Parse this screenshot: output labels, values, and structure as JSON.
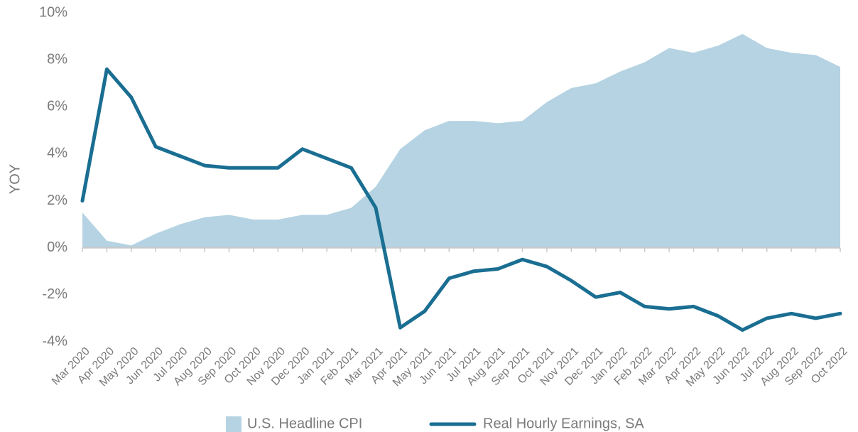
{
  "chart_data": {
    "type": "line",
    "y_label": "YOY",
    "categories": [
      "Mar 2020",
      "Apr 2020",
      "May 2020",
      "Jun 2020",
      "Jul 2020",
      "Aug 2020",
      "Sep 2020",
      "Oct 2020",
      "Nov 2020",
      "Dec 2020",
      "Jan 2021",
      "Feb 2021",
      "Mar 2021",
      "Apr 2021",
      "May 2021",
      "Jun 2021",
      "Jul 2021",
      "Aug 2021",
      "Sep 2021",
      "Oct 2021",
      "Nov 2021",
      "Dec 2021",
      "Jan 2022",
      "Feb 2022",
      "Mar 2022",
      "Apr 2022",
      "May 2022",
      "Jun 2022",
      "Jul 2022",
      "Aug 2022",
      "Sep 2022",
      "Oct 2022"
    ],
    "series": [
      {
        "name": "U.S. Headline CPI",
        "kind": "area",
        "color": "#b5d3e2",
        "values": [
          1.5,
          0.3,
          0.1,
          0.6,
          1.0,
          1.3,
          1.4,
          1.2,
          1.2,
          1.4,
          1.4,
          1.7,
          2.6,
          4.2,
          5.0,
          5.4,
          5.4,
          5.3,
          5.4,
          6.2,
          6.8,
          7.0,
          7.5,
          7.9,
          8.5,
          8.3,
          8.6,
          9.1,
          8.5,
          8.3,
          8.2,
          7.7
        ]
      },
      {
        "name": "Real Hourly Earnings, SA",
        "kind": "line",
        "color": "#1a6e92",
        "values": [
          2.0,
          7.6,
          6.4,
          4.3,
          3.9,
          3.5,
          3.4,
          3.4,
          3.4,
          4.2,
          3.8,
          3.4,
          1.7,
          -3.4,
          -2.7,
          -1.3,
          -1.0,
          -0.9,
          -0.5,
          -0.8,
          -1.4,
          -2.1,
          -1.9,
          -2.5,
          -2.6,
          -2.5,
          -2.9,
          -3.5,
          -3.0,
          -2.8,
          -3.0,
          -2.8
        ]
      }
    ],
    "ylim": [
      -4,
      10
    ],
    "yticks": [
      {
        "value": -4,
        "label": "-4%"
      },
      {
        "value": -2,
        "label": "-2%"
      },
      {
        "value": 0,
        "label": "0%"
      },
      {
        "value": 2,
        "label": "2%"
      },
      {
        "value": 4,
        "label": "4%"
      },
      {
        "value": 6,
        "label": "6%"
      },
      {
        "value": 8,
        "label": "8%"
      },
      {
        "value": 10,
        "label": "10%"
      }
    ],
    "grid": false,
    "legend": "bottom"
  }
}
